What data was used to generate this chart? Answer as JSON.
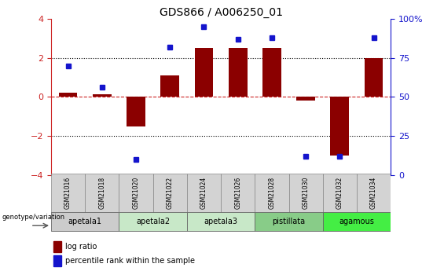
{
  "title": "GDS866 / A006250_01",
  "samples": [
    "GSM21016",
    "GSM21018",
    "GSM21020",
    "GSM21022",
    "GSM21024",
    "GSM21026",
    "GSM21028",
    "GSM21030",
    "GSM21032",
    "GSM21034"
  ],
  "log_ratio": [
    0.2,
    0.15,
    -1.5,
    1.1,
    2.5,
    2.5,
    2.5,
    -0.2,
    -3.0,
    2.0
  ],
  "percentile": [
    70,
    56,
    10,
    82,
    95,
    87,
    88,
    12,
    12,
    88
  ],
  "ylim_left": [
    -4,
    4
  ],
  "ylim_right": [
    0,
    100
  ],
  "yticks_left": [
    -4,
    -2,
    0,
    2,
    4
  ],
  "yticks_right": [
    0,
    25,
    50,
    75,
    100
  ],
  "bar_color": "#8B0000",
  "dot_color": "#1414CC",
  "groups": [
    {
      "label": "apetala1",
      "start": 0,
      "end": 1,
      "color": "#cccccc"
    },
    {
      "label": "apetala2",
      "start": 2,
      "end": 3,
      "color": "#c8e8c8"
    },
    {
      "label": "apetala3",
      "start": 4,
      "end": 5,
      "color": "#c8e8c8"
    },
    {
      "label": "pistillata",
      "start": 6,
      "end": 7,
      "color": "#88cc88"
    },
    {
      "label": "agamous",
      "start": 8,
      "end": 9,
      "color": "#44ee44"
    }
  ],
  "legend_bar_label": "log ratio",
  "legend_dot_label": "percentile rank within the sample",
  "genotype_label": "genotype/variation",
  "right_axis_color": "#1414CC",
  "left_axis_color": "#CC2222"
}
